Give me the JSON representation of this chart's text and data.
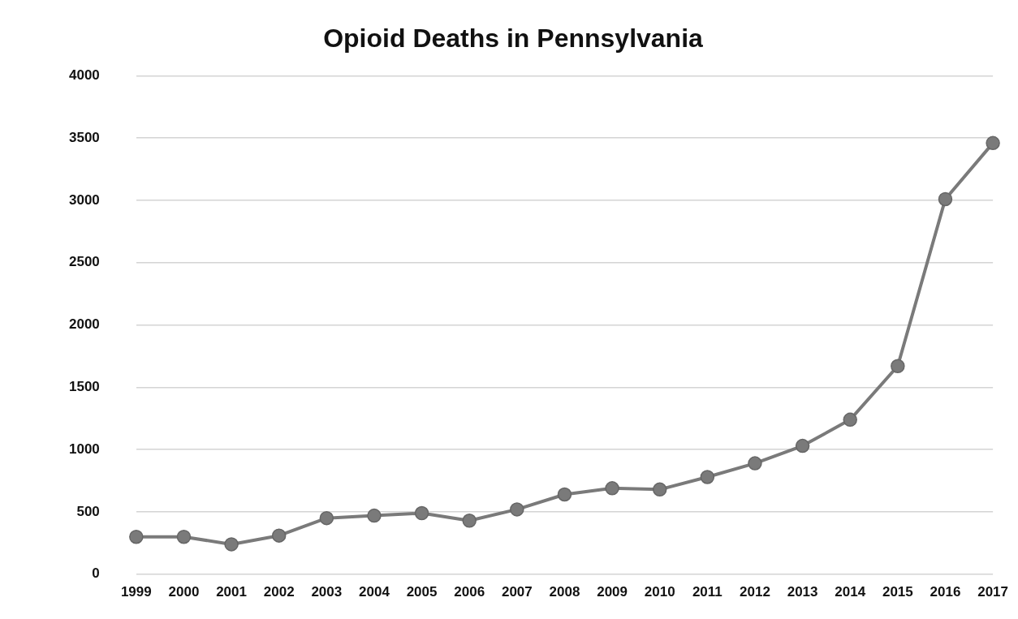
{
  "chart_data": {
    "type": "line",
    "title": "Opioid Deaths in Pennsylvania",
    "categories": [
      "1999",
      "2000",
      "2001",
      "2002",
      "2003",
      "2004",
      "2005",
      "2006",
      "2007",
      "2008",
      "2009",
      "2010",
      "2011",
      "2012",
      "2013",
      "2014",
      "2015",
      "2016",
      "2017"
    ],
    "series": [
      {
        "color": "#7a7a7a",
        "values": [
          300,
          300,
          240,
          310,
          450,
          470,
          490,
          430,
          520,
          640,
          690,
          680,
          780,
          890,
          1030,
          1240,
          1670,
          3010,
          3460
        ]
      }
    ],
    "ylim": [
      0,
      4000
    ],
    "yticks": [
      0,
      500,
      1000,
      1500,
      2000,
      2500,
      3000,
      3500,
      4000
    ],
    "grid": "y",
    "marker": "circle",
    "line_style": "solid",
    "legend": false
  }
}
